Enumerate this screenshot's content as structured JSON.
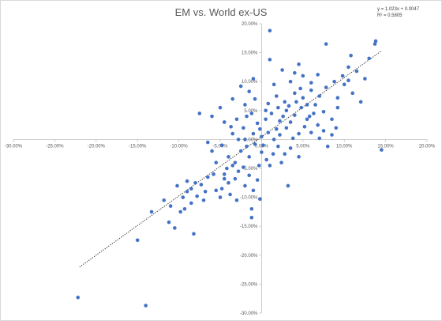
{
  "chart_data": {
    "type": "scatter",
    "title": "EM vs. World ex-US",
    "xlabel": "",
    "ylabel": "",
    "xlim": [
      -0.3,
      0.2
    ],
    "ylim": [
      -0.3,
      0.2
    ],
    "x_ticks": [
      "-30.00%",
      "-25.00%",
      "-20.00%",
      "-15.00%",
      "-10.00%",
      "-5.00%",
      "0.00%",
      "5.00%",
      "10.00%",
      "15.00%",
      "20.00%"
    ],
    "y_ticks": [
      "20.00%",
      "15.00%",
      "10.00%",
      "5.00%",
      "0.00%",
      "-5.00%",
      "-10.00%",
      "-15.00%",
      "-20.00%",
      "-25.00%",
      "-30.00%"
    ],
    "grid": false,
    "legend": "none",
    "marker_color": "#4472c4",
    "trendline": {
      "equation": "y = 1.023x + 0.0047",
      "r_squared": "R² = 0.5805",
      "slope": 1.023,
      "intercept": 0.0047,
      "x_range": [
        -0.22,
        0.145
      ],
      "style": "dotted"
    },
    "points": [
      {
        "x": -0.222,
        "y": -0.273
      },
      {
        "x": -0.14,
        "y": -0.287
      },
      {
        "x": -0.15,
        "y": -0.174
      },
      {
        "x": -0.082,
        "y": -0.163
      },
      {
        "x": -0.105,
        "y": -0.153
      },
      {
        "x": -0.112,
        "y": -0.143
      },
      {
        "x": -0.098,
        "y": -0.125
      },
      {
        "x": -0.133,
        "y": -0.125
      },
      {
        "x": -0.11,
        "y": -0.115
      },
      {
        "x": -0.093,
        "y": -0.12
      },
      {
        "x": -0.085,
        "y": -0.11
      },
      {
        "x": -0.095,
        "y": -0.1
      },
      {
        "x": -0.078,
        "y": -0.098
      },
      {
        "x": -0.07,
        "y": -0.105
      },
      {
        "x": -0.085,
        "y": -0.085
      },
      {
        "x": -0.08,
        "y": -0.075
      },
      {
        "x": -0.073,
        "y": -0.078
      },
      {
        "x": -0.065,
        "y": -0.065
      },
      {
        "x": -0.09,
        "y": -0.072
      },
      {
        "x": -0.055,
        "y": -0.088
      },
      {
        "x": -0.048,
        "y": -0.085
      },
      {
        "x": -0.05,
        "y": -0.1
      },
      {
        "x": -0.045,
        "y": -0.06
      },
      {
        "x": -0.04,
        "y": -0.075
      },
      {
        "x": -0.038,
        "y": -0.095
      },
      {
        "x": -0.032,
        "y": -0.068
      },
      {
        "x": -0.03,
        "y": -0.105
      },
      {
        "x": -0.035,
        "y": -0.045
      },
      {
        "x": -0.028,
        "y": -0.055
      },
      {
        "x": -0.02,
        "y": -0.08
      },
      {
        "x": -0.015,
        "y": -0.062
      },
      {
        "x": -0.01,
        "y": -0.088
      },
      {
        "x": -0.005,
        "y": -0.07
      },
      {
        "x": -0.003,
        "y": -0.045
      },
      {
        "x": -0.015,
        "y": -0.03
      },
      {
        "x": -0.025,
        "y": -0.02
      },
      {
        "x": -0.04,
        "y": -0.03
      },
      {
        "x": -0.055,
        "y": -0.04
      },
      {
        "x": -0.06,
        "y": -0.02
      },
      {
        "x": -0.048,
        "y": -0.01
      },
      {
        "x": -0.028,
        "y": 0.0
      },
      {
        "x": -0.018,
        "y": -0.012
      },
      {
        "x": -0.008,
        "y": -0.008
      },
      {
        "x": 0.0,
        "y": -0.022
      },
      {
        "x": 0.006,
        "y": -0.035
      },
      {
        "x": 0.014,
        "y": -0.025
      },
      {
        "x": 0.02,
        "y": -0.012
      },
      {
        "x": 0.028,
        "y": -0.025
      },
      {
        "x": 0.035,
        "y": -0.015
      },
      {
        "x": 0.045,
        "y": -0.03
      },
      {
        "x": 0.032,
        "y": -0.08
      },
      {
        "x": -0.002,
        "y": -0.103
      },
      {
        "x": -0.012,
        "y": -0.135
      },
      {
        "x": -0.012,
        "y": -0.12
      },
      {
        "x": -0.035,
        "y": 0.01
      },
      {
        "x": -0.022,
        "y": 0.02
      },
      {
        "x": -0.01,
        "y": 0.01
      },
      {
        "x": 0.0,
        "y": 0.005
      },
      {
        "x": 0.008,
        "y": 0.012
      },
      {
        "x": 0.015,
        "y": 0.0
      },
      {
        "x": 0.022,
        "y": 0.008
      },
      {
        "x": 0.03,
        "y": 0.02
      },
      {
        "x": 0.038,
        "y": 0.002
      },
      {
        "x": 0.045,
        "y": 0.01
      },
      {
        "x": 0.052,
        "y": 0.022
      },
      {
        "x": 0.06,
        "y": 0.012
      },
      {
        "x": 0.07,
        "y": 0.002
      },
      {
        "x": 0.08,
        "y": -0.012
      },
      {
        "x": 0.09,
        "y": 0.02
      },
      {
        "x": -0.045,
        "y": 0.03
      },
      {
        "x": -0.03,
        "y": 0.035
      },
      {
        "x": -0.018,
        "y": 0.04
      },
      {
        "x": -0.005,
        "y": 0.028
      },
      {
        "x": 0.005,
        "y": 0.035
      },
      {
        "x": 0.012,
        "y": 0.045
      },
      {
        "x": 0.022,
        "y": 0.032
      },
      {
        "x": 0.03,
        "y": 0.05
      },
      {
        "x": 0.04,
        "y": 0.042
      },
      {
        "x": 0.048,
        "y": 0.055
      },
      {
        "x": 0.058,
        "y": 0.04
      },
      {
        "x": 0.065,
        "y": 0.06
      },
      {
        "x": 0.075,
        "y": 0.048
      },
      {
        "x": 0.085,
        "y": 0.035
      },
      {
        "x": 0.092,
        "y": 0.055
      },
      {
        "x": -0.06,
        "y": 0.04
      },
      {
        "x": -0.075,
        "y": 0.045
      },
      {
        "x": -0.05,
        "y": 0.055
      },
      {
        "x": -0.02,
        "y": 0.06
      },
      {
        "x": -0.008,
        "y": 0.07
      },
      {
        "x": 0.008,
        "y": 0.062
      },
      {
        "x": 0.018,
        "y": 0.075
      },
      {
        "x": 0.028,
        "y": 0.065
      },
      {
        "x": 0.04,
        "y": 0.08
      },
      {
        "x": 0.05,
        "y": 0.072
      },
      {
        "x": 0.06,
        "y": 0.085
      },
      {
        "x": 0.07,
        "y": 0.075
      },
      {
        "x": 0.078,
        "y": 0.09
      },
      {
        "x": 0.088,
        "y": 0.1
      },
      {
        "x": 0.098,
        "y": 0.11
      },
      {
        "x": 0.105,
        "y": 0.125
      },
      {
        "x": 0.1,
        "y": 0.095
      },
      {
        "x": 0.11,
        "y": 0.08
      },
      {
        "x": 0.12,
        "y": 0.065
      },
      {
        "x": 0.138,
        "y": 0.17
      },
      {
        "x": 0.137,
        "y": 0.165
      },
      {
        "x": 0.145,
        "y": -0.018
      },
      {
        "x": 0.108,
        "y": 0.145
      },
      {
        "x": 0.078,
        "y": 0.165
      },
      {
        "x": 0.045,
        "y": 0.13
      },
      {
        "x": 0.04,
        "y": 0.115
      },
      {
        "x": 0.025,
        "y": 0.12
      },
      {
        "x": 0.01,
        "y": 0.138
      },
      {
        "x": 0.01,
        "y": 0.188
      },
      {
        "x": -0.01,
        "y": 0.105
      },
      {
        "x": -0.025,
        "y": 0.092
      },
      {
        "x": -0.015,
        "y": 0.083
      },
      {
        "x": -0.035,
        "y": 0.07
      },
      {
        "x": 0.035,
        "y": 0.1
      },
      {
        "x": 0.05,
        "y": 0.11
      },
      {
        "x": 0.06,
        "y": 0.098
      },
      {
        "x": 0.068,
        "y": 0.112
      },
      {
        "x": 0.015,
        "y": 0.095
      },
      {
        "x": 0.02,
        "y": 0.055
      },
      {
        "x": 0.005,
        "y": 0.05
      },
      {
        "x": -0.012,
        "y": 0.045
      },
      {
        "x": 0.035,
        "y": 0.03
      },
      {
        "x": 0.042,
        "y": 0.065
      },
      {
        "x": 0.055,
        "y": 0.035
      },
      {
        "x": 0.068,
        "y": 0.025
      },
      {
        "x": 0.075,
        "y": 0.015
      },
      {
        "x": 0.085,
        "y": 0.008
      },
      {
        "x": -0.065,
        "y": -0.005
      },
      {
        "x": -0.042,
        "y": -0.05
      },
      {
        "x": -0.058,
        "y": -0.06
      },
      {
        "x": -0.032,
        "y": -0.04
      },
      {
        "x": -0.022,
        "y": -0.048
      },
      {
        "x": 0.002,
        "y": -0.01
      },
      {
        "x": 0.018,
        "y": 0.018
      },
      {
        "x": 0.026,
        "y": 0.04
      },
      {
        "x": 0.033,
        "y": 0.058
      },
      {
        "x": 0.047,
        "y": 0.088
      },
      {
        "x": 0.055,
        "y": 0.06
      },
      {
        "x": 0.063,
        "y": 0.045
      },
      {
        "x": -0.002,
        "y": 0.018
      },
      {
        "x": -0.02,
        "y": 0.0
      },
      {
        "x": -0.037,
        "y": 0.022
      },
      {
        "x": 0.01,
        "y": -0.045
      },
      {
        "x": 0.024,
        "y": -0.04
      },
      {
        "x": -0.045,
        "y": -0.068
      },
      {
        "x": -0.068,
        "y": -0.09
      },
      {
        "x": -0.09,
        "y": -0.09
      },
      {
        "x": -0.102,
        "y": -0.08
      },
      {
        "x": -0.118,
        "y": -0.105
      },
      {
        "x": 0.092,
        "y": 0.072
      },
      {
        "x": 0.105,
        "y": 0.102
      },
      {
        "x": 0.115,
        "y": 0.118
      },
      {
        "x": 0.13,
        "y": 0.14
      },
      {
        "x": 0.125,
        "y": 0.105
      }
    ]
  }
}
